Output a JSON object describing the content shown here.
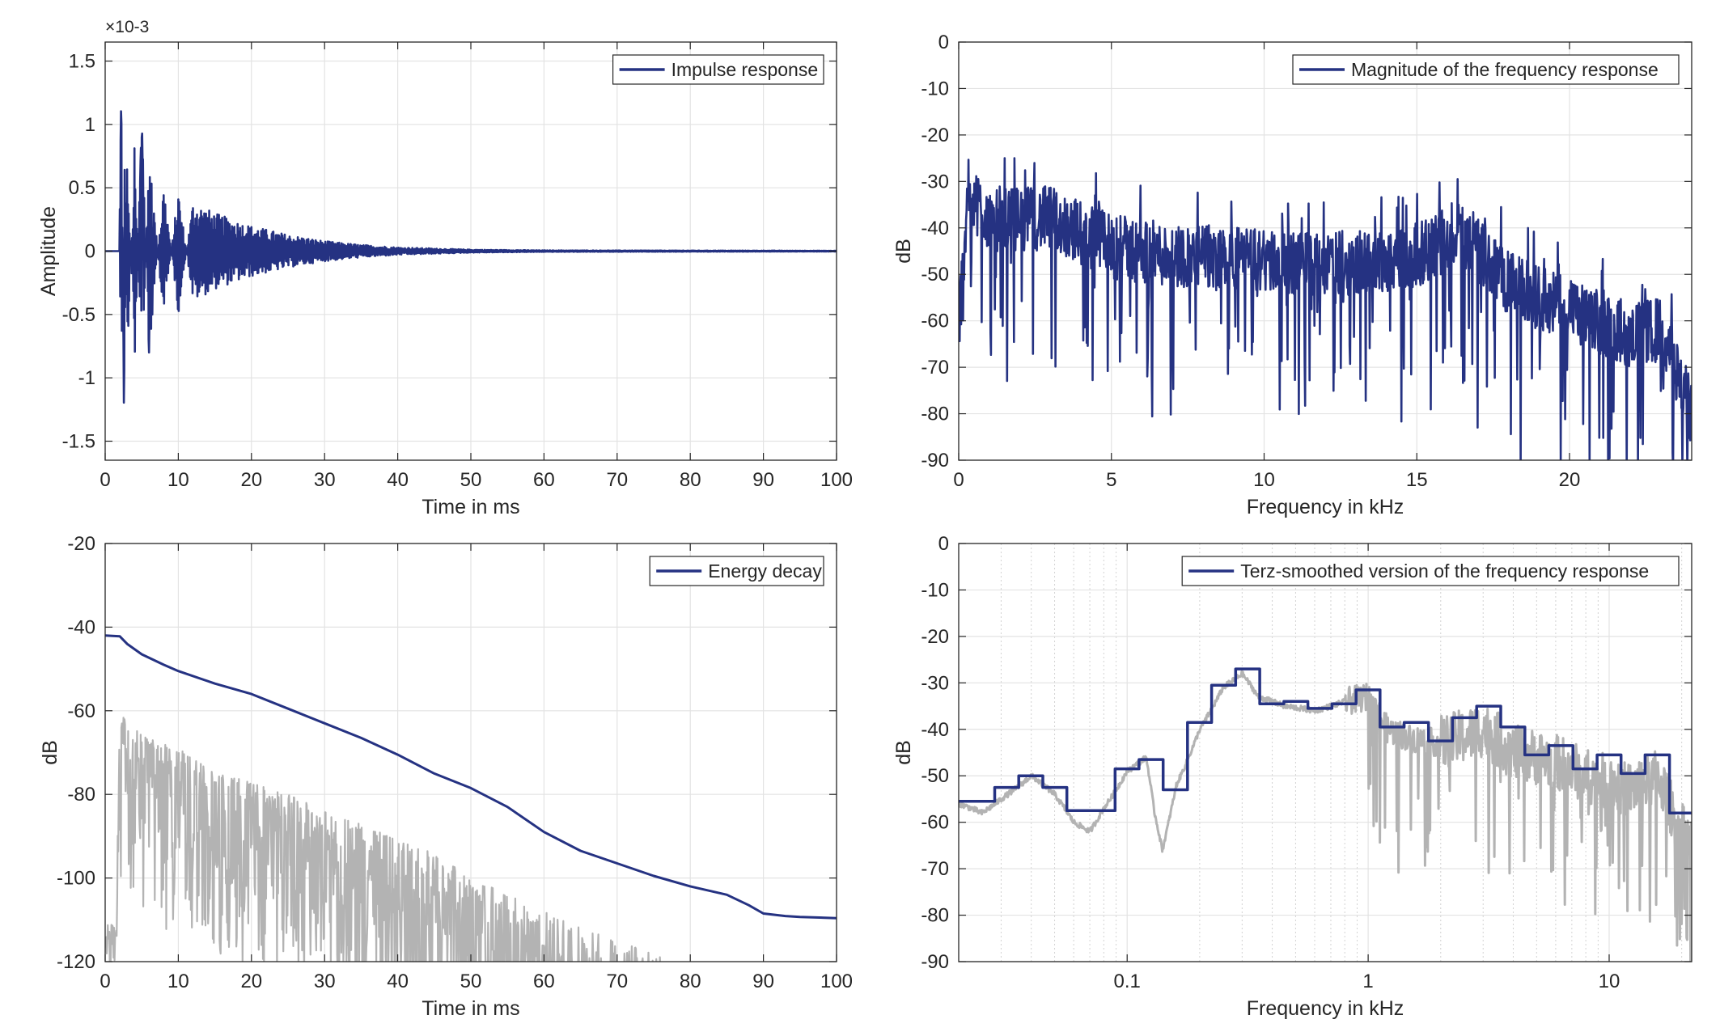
{
  "colors": {
    "series": "#253282",
    "secondary": "#b3b3b3",
    "grid": "#e3e3e3",
    "axis": "#262626"
  },
  "chart_data": [
    {
      "id": "impulse",
      "type": "line",
      "xlabel": "Time in ms",
      "ylabel": "Amplitude",
      "y_exponent": "×10-3",
      "xlim": [
        0,
        100
      ],
      "ylim": [
        -1.65,
        1.65
      ],
      "xticks": [
        0,
        10,
        20,
        30,
        40,
        50,
        60,
        70,
        80,
        90,
        100
      ],
      "yticks": [
        -1.5,
        -1,
        -0.5,
        0,
        0.5,
        1,
        1.5
      ],
      "ytick_labels": [
        "-1.5",
        "-1",
        "-0.5",
        "0",
        "0.5",
        "1",
        "1.5"
      ],
      "grid": true,
      "legend_position": "top-right",
      "series": [
        {
          "name": "Impulse response",
          "style": "primary",
          "envelope": [
            [
              0,
              0
            ],
            [
              1.9,
              0.02
            ],
            [
              2.2,
              1.24
            ],
            [
              2.6,
              -1.5
            ],
            [
              3,
              0.95
            ],
            [
              4,
              -0.9
            ],
            [
              5,
              1.03
            ],
            [
              6,
              -0.8
            ],
            [
              8,
              0.55
            ],
            [
              10,
              -0.5
            ],
            [
              12,
              0.4
            ],
            [
              15,
              0.3
            ],
            [
              20,
              0.2
            ],
            [
              25,
              0.13
            ],
            [
              30,
              0.08
            ],
            [
              35,
              0.05
            ],
            [
              40,
              0.03
            ],
            [
              50,
              0.012
            ],
            [
              60,
              0.006
            ],
            [
              100,
              0.003
            ]
          ]
        }
      ]
    },
    {
      "id": "magnitude",
      "type": "line",
      "xlabel": "Frequency in kHz",
      "ylabel": "dB",
      "xlim": [
        0,
        24
      ],
      "ylim": [
        -90,
        0
      ],
      "xticks": [
        0,
        5,
        10,
        15,
        20
      ],
      "yticks": [
        -90,
        -80,
        -70,
        -60,
        -50,
        -40,
        -30,
        -20,
        -10,
        0
      ],
      "grid": true,
      "legend_position": "top-right",
      "series": [
        {
          "name": "Magnitude of the frequency response",
          "style": "primary",
          "trend": [
            [
              0,
              -62
            ],
            [
              0.3,
              -32
            ],
            [
              1,
              -38
            ],
            [
              3,
              -38
            ],
            [
              5,
              -44
            ],
            [
              7,
              -46
            ],
            [
              10,
              -47
            ],
            [
              12,
              -48
            ],
            [
              15,
              -46
            ],
            [
              16.5,
              -41
            ],
            [
              18,
              -52
            ],
            [
              20,
              -58
            ],
            [
              22,
              -63
            ],
            [
              23,
              -62
            ],
            [
              24,
              -80
            ]
          ]
        }
      ]
    },
    {
      "id": "energy",
      "type": "line",
      "xlabel": "Time in ms",
      "ylabel": "dB",
      "xlim": [
        0,
        100
      ],
      "ylim": [
        -120,
        -20
      ],
      "xticks": [
        0,
        10,
        20,
        30,
        40,
        50,
        60,
        70,
        80,
        90,
        100
      ],
      "yticks": [
        -120,
        -100,
        -80,
        -60,
        -40,
        -20
      ],
      "grid": true,
      "legend_position": "top-right",
      "series": [
        {
          "name": "Energy decay",
          "style": "primary",
          "x": [
            0,
            2,
            3,
            5,
            8,
            10,
            15,
            20,
            25,
            30,
            35,
            40,
            45,
            50,
            55,
            60,
            65,
            70,
            75,
            80,
            85,
            88,
            90,
            93,
            95,
            100
          ],
          "y": [
            -42,
            -42.2,
            -44,
            -46.5,
            -49,
            -50.5,
            -53.5,
            -56,
            -59.5,
            -63,
            -66.5,
            -70.5,
            -75,
            -78.5,
            -83,
            -89,
            -93.5,
            -96.5,
            -99.5,
            -102,
            -104,
            -106.5,
            -108.5,
            -109.1,
            -109.3,
            -109.6
          ]
        },
        {
          "name": "",
          "style": "secondary",
          "envelope": [
            [
              0,
              -110
            ],
            [
              1.5,
              -112
            ],
            [
              2,
              -60
            ],
            [
              5,
              -66
            ],
            [
              10,
              -69
            ],
            [
              15,
              -75
            ],
            [
              20,
              -77
            ],
            [
              25,
              -80
            ],
            [
              30,
              -84
            ],
            [
              35,
              -87
            ],
            [
              40,
              -91
            ],
            [
              45,
              -94
            ],
            [
              50,
              -100
            ],
            [
              55,
              -104
            ],
            [
              60,
              -108
            ],
            [
              65,
              -112
            ],
            [
              70,
              -115
            ],
            [
              75,
              -118
            ],
            [
              77,
              -120
            ]
          ]
        }
      ]
    },
    {
      "id": "terz",
      "type": "line",
      "xscale": "log",
      "xlabel": "Frequency in kHz",
      "ylabel": "dB",
      "xlim": [
        0.02,
        22
      ],
      "ylim": [
        -90,
        0
      ],
      "xticks": [
        0.1,
        1,
        10
      ],
      "xtick_labels": [
        "0.1",
        "1",
        "10"
      ],
      "yticks": [
        -90,
        -80,
        -70,
        -60,
        -50,
        -40,
        -30,
        -20,
        -10,
        0
      ],
      "grid": true,
      "legend_position": "top-right",
      "series": [
        {
          "name": "Terz-smoothed version of the frequency response",
          "style": "primary",
          "bands": [
            [
              0.02,
              0.0282,
              -55.5
            ],
            [
              0.0282,
              0.0355,
              -52.5
            ],
            [
              0.0355,
              0.0447,
              -50
            ],
            [
              0.0447,
              0.0562,
              -52.5
            ],
            [
              0.0562,
              0.0891,
              -57.5
            ],
            [
              0.0891,
              0.112,
              -48.5
            ],
            [
              0.112,
              0.141,
              -46.5
            ],
            [
              0.141,
              0.178,
              -53
            ],
            [
              0.178,
              0.224,
              -38.5
            ],
            [
              0.224,
              0.282,
              -30.5
            ],
            [
              0.282,
              0.355,
              -27
            ],
            [
              0.355,
              0.447,
              -34.5
            ],
            [
              0.447,
              0.562,
              -34
            ],
            [
              0.562,
              0.708,
              -35.5
            ],
            [
              0.708,
              0.891,
              -34.5
            ],
            [
              0.891,
              1.12,
              -31.5
            ],
            [
              1.12,
              1.41,
              -39.5
            ],
            [
              1.41,
              1.78,
              -38.5
            ],
            [
              1.78,
              2.24,
              -42.5
            ],
            [
              2.24,
              2.82,
              -37.5
            ],
            [
              2.82,
              3.55,
              -35
            ],
            [
              3.55,
              4.47,
              -39.5
            ],
            [
              4.47,
              5.62,
              -45.5
            ],
            [
              5.62,
              7.08,
              -43.5
            ],
            [
              7.08,
              8.91,
              -48.5
            ],
            [
              8.91,
              11.2,
              -45.5
            ],
            [
              11.2,
              14.1,
              -49.5
            ],
            [
              14.1,
              17.8,
              -45.5
            ],
            [
              17.8,
              22,
              -58
            ]
          ]
        },
        {
          "name": "",
          "style": "secondary",
          "trend": [
            [
              0.02,
              -56
            ],
            [
              0.025,
              -58
            ],
            [
              0.03,
              -55
            ],
            [
              0.04,
              -50
            ],
            [
              0.05,
              -54
            ],
            [
              0.06,
              -60
            ],
            [
              0.07,
              -62
            ],
            [
              0.08,
              -57
            ],
            [
              0.1,
              -49
            ],
            [
              0.12,
              -46
            ],
            [
              0.13,
              -58
            ],
            [
              0.14,
              -66
            ],
            [
              0.16,
              -52
            ],
            [
              0.2,
              -40
            ],
            [
              0.25,
              -31
            ],
            [
              0.3,
              -28
            ],
            [
              0.35,
              -33
            ],
            [
              0.45,
              -35
            ],
            [
              0.6,
              -36
            ],
            [
              0.8,
              -34
            ],
            [
              1,
              -33
            ],
            [
              1.2,
              -40
            ],
            [
              1.5,
              -42
            ],
            [
              2,
              -43
            ],
            [
              3,
              -40
            ],
            [
              4,
              -45
            ],
            [
              6,
              -47
            ],
            [
              8,
              -50
            ],
            [
              12,
              -53
            ],
            [
              16,
              -50
            ],
            [
              19,
              -60
            ],
            [
              22,
              -65
            ]
          ]
        }
      ]
    }
  ]
}
